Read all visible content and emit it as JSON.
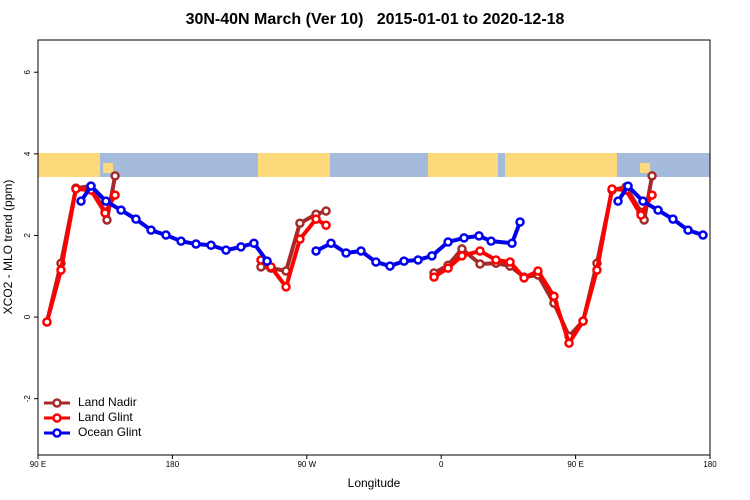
{
  "chart_data": {
    "type": "line",
    "title": "30N-40N March (Ver 10)   2015-01-01 to 2020-12-18",
    "x_label": "Longitude",
    "y_label": "XCO2 - MLO trend (ppm)",
    "xlim": [
      90,
      540
    ],
    "xticks": [
      {
        "value": 90,
        "label": "90 E"
      },
      {
        "value": 180,
        "label": "180"
      },
      {
        "value": 270,
        "label": "90 W"
      },
      {
        "value": 360,
        "label": "0"
      },
      {
        "value": 450,
        "label": "90 E"
      },
      {
        "value": 540,
        "label": "180"
      }
    ],
    "ylim": [
      -3.38,
      6.79
    ],
    "yticks": [
      -2,
      0,
      2,
      4,
      6
    ],
    "legend": "bottom-left",
    "series": [
      {
        "name": "Land Nadir",
        "color": "#a52a2a",
        "x": [
          96.0,
          105.4,
          115.4,
          125.5,
          134.9,
          136.2,
          141.6,
          null,
          239.3,
          246.0,
          256.1,
          265.4,
          276.2,
          282.9,
          null,
          355.2,
          364.6,
          373.9,
          386.0,
          396.7,
          406.1,
          415.5,
          424.8,
          435.5,
          445.6,
          455.0,
          464.3,
          474.4,
          483.8,
          493.8,
          495.9,
          501.2
        ],
        "values": [
          -0.12,
          1.32,
          3.16,
          3.21,
          2.57,
          2.38,
          3.46,
          null,
          1.23,
          1.2,
          1.13,
          2.3,
          2.52,
          2.6,
          null,
          1.08,
          1.27,
          1.67,
          1.3,
          1.32,
          1.25,
          0.98,
          1.03,
          0.34,
          -0.47,
          -0.1,
          1.32,
          3.11,
          3.19,
          2.57,
          2.38,
          3.46
        ]
      },
      {
        "name": "Land Glint",
        "color": "#ff0000",
        "x": [
          96.0,
          105.4,
          115.4,
          125.5,
          134.9,
          141.6,
          null,
          239.3,
          246.0,
          256.1,
          265.4,
          276.2,
          282.9,
          null,
          355.2,
          364.6,
          373.9,
          386.0,
          396.7,
          406.1,
          415.5,
          424.8,
          435.5,
          445.6,
          455.0,
          464.3,
          474.4,
          483.8,
          493.8,
          501.2
        ],
        "values": [
          -0.12,
          1.15,
          3.14,
          3.11,
          2.55,
          2.99,
          null,
          1.4,
          1.23,
          0.74,
          1.91,
          2.4,
          2.25,
          null,
          0.98,
          1.2,
          1.5,
          1.62,
          1.4,
          1.35,
          0.96,
          1.13,
          0.51,
          -0.64,
          -0.1,
          1.15,
          3.14,
          3.11,
          2.5,
          2.99
        ]
      },
      {
        "name": "Ocean Glint",
        "color": "#0000ee",
        "x": [
          118.8,
          125.5,
          135.5,
          145.6,
          155.6,
          165.7,
          175.7,
          185.8,
          195.8,
          205.9,
          215.9,
          225.9,
          234.6,
          243.4,
          null,
          276.2,
          286.2,
          296.3,
          306.3,
          316.3,
          325.7,
          335.1,
          344.5,
          353.8,
          364.6,
          375.3,
          385.3,
          393.4,
          407.4,
          412.8,
          null,
          478.4,
          485.1,
          495.1,
          505.2,
          515.2,
          525.3,
          535.3
        ],
        "values": [
          2.84,
          3.21,
          2.84,
          2.62,
          2.4,
          2.13,
          2.01,
          1.86,
          1.79,
          1.76,
          1.64,
          1.72,
          1.81,
          1.37,
          null,
          1.62,
          1.81,
          1.57,
          1.62,
          1.35,
          1.25,
          1.37,
          1.4,
          1.5,
          1.84,
          1.94,
          1.99,
          1.86,
          1.81,
          2.33,
          null,
          2.84,
          3.21,
          2.84,
          2.62,
          2.4,
          2.13,
          2.01
        ]
      }
    ]
  }
}
